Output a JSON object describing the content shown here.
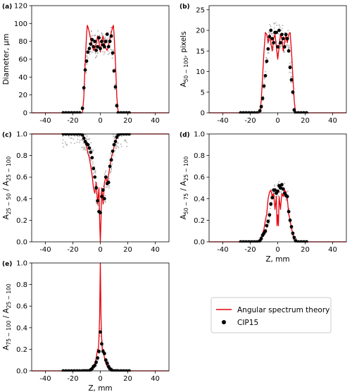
{
  "figure": {
    "legend": {
      "theory_label": "Angular spectrum theory",
      "measured_label": "CIP15",
      "theory_color": "#e8000b",
      "measured_color": "#000000",
      "raw_color": "#aaaaaa"
    }
  },
  "chart_data": [
    {
      "panel": "(a)",
      "type": "line",
      "xlabel": "",
      "ylabel": "Diameter, μm",
      "xlim": [
        -50,
        50
      ],
      "ylim": [
        0,
        120
      ],
      "xticks": [
        -40,
        -20,
        0,
        20,
        40
      ],
      "yticks": [
        0,
        20,
        40,
        60,
        80,
        100,
        120
      ],
      "ytick_labels": [
        "0",
        "20",
        "40",
        "60",
        "80",
        "100",
        "120"
      ],
      "series": [
        {
          "name": "Angular spectrum theory",
          "x": [
            -50,
            -13,
            -12,
            -11,
            -10,
            -9.5,
            -9,
            -8,
            -7,
            -6,
            -5,
            -4,
            -3,
            -2,
            -1,
            0,
            1,
            2,
            3,
            4,
            5,
            6,
            7,
            8,
            9,
            9.5,
            10,
            11,
            12,
            13,
            50
          ],
          "y": [
            0,
            0,
            18,
            58,
            88,
            98,
            96,
            90,
            82,
            76,
            70,
            72,
            78,
            86,
            80,
            68,
            80,
            86,
            78,
            72,
            70,
            76,
            82,
            90,
            96,
            98,
            88,
            58,
            18,
            0,
            0
          ]
        },
        {
          "name": "CIP15",
          "x": [
            -27,
            -25,
            -23,
            -21,
            -19,
            -17,
            -15,
            -13,
            -12,
            -11,
            -10,
            -9,
            -8,
            -7,
            -6,
            -5,
            -4,
            -3,
            -2,
            -1,
            0,
            1,
            2,
            3,
            4,
            5,
            6,
            7,
            8,
            9,
            10,
            11,
            12,
            13,
            15,
            17,
            19,
            21
          ],
          "y": [
            0,
            0,
            0,
            0,
            0,
            0,
            0,
            5,
            28,
            48,
            58,
            68,
            72,
            77,
            82,
            74,
            80,
            70,
            74,
            84,
            72,
            80,
            76,
            74,
            80,
            88,
            74,
            80,
            86,
            67,
            47,
            29,
            8,
            0,
            0,
            0,
            0,
            0
          ]
        }
      ]
    },
    {
      "panel": "(b)",
      "type": "line",
      "xlabel": "",
      "ylabel": "A50 − 100, pixels",
      "xlim": [
        -50,
        50
      ],
      "ylim": [
        0,
        26
      ],
      "xticks": [
        -40,
        -20,
        0,
        20,
        40
      ],
      "yticks": [
        0,
        5,
        10,
        15,
        20,
        25
      ],
      "ytick_labels": [
        "0",
        "5",
        "10",
        "15",
        "20",
        "25"
      ],
      "series": [
        {
          "name": "Angular spectrum theory",
          "x": [
            -50,
            -13,
            -12,
            -11,
            -10,
            -9,
            -8,
            -7,
            -6,
            -5,
            -4,
            -3,
            -2,
            -1,
            0,
            1,
            2,
            3,
            4,
            5,
            6,
            7,
            8,
            9,
            10,
            11,
            12,
            13,
            50
          ],
          "y": [
            0,
            0,
            3,
            9,
            15,
            19.5,
            19,
            17,
            19,
            17,
            15,
            18,
            19,
            16,
            13,
            16,
            19,
            18,
            15,
            17,
            19,
            17,
            19,
            19.5,
            15,
            9,
            3,
            0,
            0
          ]
        },
        {
          "name": "CIP15",
          "x": [
            -27,
            -25,
            -23,
            -21,
            -19,
            -17,
            -15,
            -13,
            -12,
            -11,
            -10,
            -9,
            -8,
            -7,
            -6,
            -5,
            -4,
            -3,
            -2,
            -1,
            0,
            1,
            2,
            3,
            4,
            5,
            6,
            7,
            8,
            9,
            10,
            11,
            12,
            13,
            15,
            17,
            19,
            21
          ],
          "y": [
            0,
            0,
            0,
            0,
            0,
            0,
            0,
            0.5,
            1.5,
            3.5,
            6.5,
            9,
            12.5,
            15.5,
            18.5,
            20,
            18,
            17,
            19.5,
            19.5,
            16,
            20,
            17,
            19,
            18,
            16,
            19,
            18,
            15,
            11,
            8,
            5,
            0.7,
            0,
            0,
            0,
            0,
            0
          ]
        }
      ]
    },
    {
      "panel": "(c)",
      "type": "line",
      "xlabel": "",
      "ylabel": "A25 − 50 / A25 − 100",
      "xlim": [
        -50,
        50
      ],
      "ylim": [
        0,
        1
      ],
      "xticks": [
        -40,
        -20,
        0,
        20,
        40
      ],
      "yticks": [
        0,
        0.2,
        0.4,
        0.6,
        0.8,
        1.0
      ],
      "ytick_labels": [
        "0.0",
        "0.2",
        "0.4",
        "0.6",
        "0.8",
        "1.0"
      ],
      "series": [
        {
          "name": "Angular spectrum theory",
          "x": [
            -50,
            -13,
            -12,
            -11,
            -10,
            -9,
            -8,
            -7,
            -6,
            -5,
            -4,
            -3,
            -2,
            -1,
            -0.5,
            0,
            0.5,
            1,
            2,
            3,
            4,
            5,
            6,
            7,
            8,
            9,
            10,
            11,
            12,
            13,
            50
          ],
          "y": [
            1,
            1,
            0.97,
            0.92,
            0.88,
            0.82,
            0.78,
            0.7,
            0.62,
            0.5,
            0.45,
            0.55,
            0.35,
            0.5,
            0.2,
            0.0,
            0.2,
            0.5,
            0.35,
            0.55,
            0.6,
            0.55,
            0.62,
            0.7,
            0.78,
            0.82,
            0.88,
            0.92,
            0.97,
            1,
            1
          ]
        },
        {
          "name": "CIP15",
          "x": [
            -27,
            -25,
            -23,
            -21,
            -19,
            -17,
            -15,
            -13,
            -12,
            -11,
            -10,
            -9,
            -8,
            -7,
            -6,
            -5,
            -4,
            -3,
            -2,
            -1,
            0,
            1,
            2,
            3,
            4,
            5,
            6,
            7,
            8,
            9,
            10,
            11,
            12,
            13,
            15,
            17,
            19,
            21
          ],
          "y": [
            1,
            1,
            1,
            1,
            1,
            1,
            1,
            0.99,
            0.96,
            0.93,
            0.91,
            0.9,
            0.87,
            0.83,
            0.78,
            0.68,
            0.6,
            0.5,
            0.38,
            0.28,
            0.27,
            0.42,
            0.48,
            0.4,
            0.6,
            0.54,
            0.55,
            0.7,
            0.76,
            0.84,
            0.9,
            0.93,
            0.97,
            0.99,
            1,
            1,
            1,
            1
          ]
        }
      ]
    },
    {
      "panel": "(d)",
      "type": "line",
      "xlabel": "Z, mm",
      "ylabel": "A50 − 75 / A25 − 100",
      "xlim": [
        -50,
        50
      ],
      "ylim": [
        0,
        1
      ],
      "xticks": [
        -40,
        -20,
        0,
        20,
        40
      ],
      "yticks": [
        0,
        0.2,
        0.4,
        0.6,
        0.8,
        1.0
      ],
      "ytick_labels": [
        "0.0",
        "0.2",
        "0.4",
        "0.6",
        "0.8",
        "1.0"
      ],
      "series": [
        {
          "name": "Angular spectrum theory",
          "x": [
            -50,
            -13,
            -12,
            -11,
            -10,
            -9,
            -8,
            -7,
            -6,
            -5,
            -4,
            -3,
            -2,
            -1,
            -0.5,
            0,
            0.5,
            1,
            2,
            3,
            4,
            5,
            6,
            7,
            8,
            9,
            10,
            11,
            12,
            13,
            50
          ],
          "y": [
            0,
            0,
            0.02,
            0.08,
            0.12,
            0.2,
            0.26,
            0.4,
            0.46,
            0.48,
            0.42,
            0.45,
            0.3,
            0.42,
            0.15,
            0.25,
            0.15,
            0.42,
            0.3,
            0.45,
            0.42,
            0.48,
            0.46,
            0.4,
            0.26,
            0.2,
            0.12,
            0.08,
            0.02,
            0,
            0
          ]
        },
        {
          "name": "CIP15",
          "x": [
            -27,
            -25,
            -23,
            -21,
            -19,
            -17,
            -15,
            -13,
            -12,
            -11,
            -10,
            -9,
            -8,
            -7,
            -6,
            -5,
            -4,
            -3,
            -2,
            -1,
            0,
            1,
            2,
            3,
            4,
            5,
            6,
            7,
            8,
            9,
            10,
            11,
            12,
            13,
            15,
            17,
            19,
            21
          ],
          "y": [
            0,
            0,
            0,
            0,
            0,
            0,
            0,
            0.01,
            0.03,
            0.06,
            0.08,
            0.1,
            0.15,
            0.19,
            0.25,
            0.35,
            0.41,
            0.48,
            0.48,
            0.45,
            0.47,
            0.52,
            0.5,
            0.53,
            0.49,
            0.45,
            0.43,
            0.42,
            0.28,
            0.2,
            0.14,
            0.08,
            0.04,
            0.01,
            0,
            0,
            0,
            0
          ]
        }
      ]
    },
    {
      "panel": "(e)",
      "type": "line",
      "xlabel": "Z, mm",
      "ylabel": "A75 − 100 / A25 − 100",
      "xlim": [
        -50,
        50
      ],
      "ylim": [
        0,
        1
      ],
      "xticks": [
        -40,
        -20,
        0,
        20,
        40
      ],
      "yticks": [
        0,
        0.2,
        0.4,
        0.6,
        0.8,
        1.0
      ],
      "ytick_labels": [
        "0.0",
        "0.2",
        "0.4",
        "0.6",
        "0.8",
        "1.0"
      ],
      "series": [
        {
          "name": "Angular spectrum theory",
          "x": [
            -50,
            -8,
            -6,
            -5,
            -4,
            -3,
            -2,
            -1.5,
            -1,
            -0.5,
            0,
            0.5,
            1,
            1.5,
            2,
            3,
            4,
            5,
            6,
            8,
            50
          ],
          "y": [
            0,
            0,
            0.02,
            0.04,
            0.07,
            0.12,
            0.2,
            0.18,
            0.3,
            0.5,
            1.0,
            0.5,
            0.3,
            0.18,
            0.2,
            0.12,
            0.07,
            0.04,
            0.02,
            0,
            0
          ]
        },
        {
          "name": "CIP15",
          "x": [
            -27,
            -25,
            -23,
            -21,
            -19,
            -17,
            -15,
            -13,
            -12,
            -11,
            -10,
            -9,
            -8,
            -7,
            -6,
            -5,
            -4,
            -3,
            -2,
            -1,
            0,
            1,
            2,
            3,
            4,
            5,
            6,
            7,
            8,
            9,
            10,
            11,
            12,
            13,
            15,
            17,
            19,
            21
          ],
          "y": [
            0,
            0,
            0,
            0,
            0,
            0,
            0,
            0,
            0,
            0,
            0,
            0,
            0,
            0.01,
            0.02,
            0.04,
            0.05,
            0.08,
            0.12,
            0.18,
            0.36,
            0.25,
            0.18,
            0.16,
            0.1,
            0.07,
            0.04,
            0.02,
            0.01,
            0,
            0,
            0,
            0,
            0,
            0,
            0,
            0,
            0
          ]
        }
      ]
    }
  ]
}
